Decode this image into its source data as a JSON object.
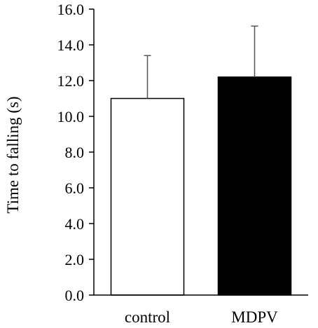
{
  "chart_data": {
    "type": "bar",
    "categories": [
      "control",
      "MDPV"
    ],
    "values": [
      11.0,
      12.2
    ],
    "errors": [
      2.4,
      2.85
    ],
    "bar_colors": [
      "#ffffff",
      "#000000"
    ],
    "ylabel": "Time to falling (s)",
    "xlabel": "",
    "ylim": [
      0,
      16
    ],
    "yticks": [
      "0.0",
      "2.0",
      "4.0",
      "6.0",
      "8.0",
      "10.0",
      "12.0",
      "14.0",
      "16.0"
    ],
    "grid": false,
    "error_bars": "upper only"
  }
}
